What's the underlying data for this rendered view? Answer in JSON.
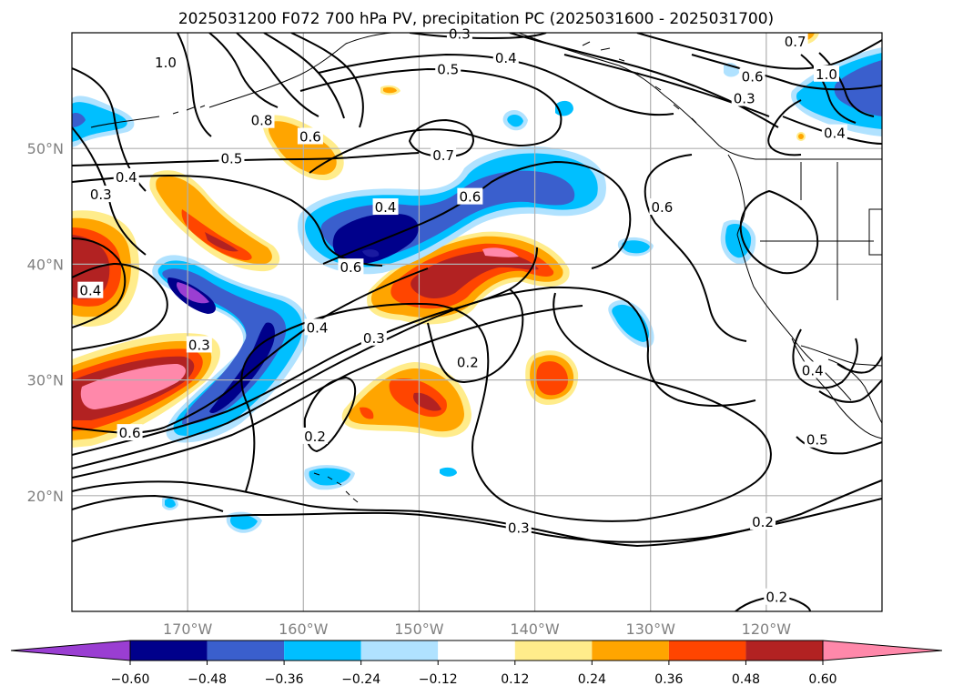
{
  "title": "2025031200 F072 700 hPa PV, precipitation PC (2025031600 - 2025031700)",
  "map": {
    "lon_range": [
      180,
      110
    ],
    "lat_range": [
      10,
      60
    ],
    "lon_ticks": [
      {
        "lon": 170,
        "label": "170°W"
      },
      {
        "lon": 160,
        "label": "160°W"
      },
      {
        "lon": 150,
        "label": "150°W"
      },
      {
        "lon": 140,
        "label": "140°W"
      },
      {
        "lon": 130,
        "label": "130°W"
      },
      {
        "lon": 120,
        "label": "120°W"
      }
    ],
    "lat_ticks": [
      {
        "lat": 50,
        "label": "50°N"
      },
      {
        "lat": 40,
        "label": "40°N"
      },
      {
        "lat": 30,
        "label": "30°N"
      },
      {
        "lat": 20,
        "label": "20°N"
      }
    ],
    "grid": true,
    "contour_labels": [
      {
        "text": "0.3",
        "lon": 146.5,
        "lat": 59.9
      },
      {
        "text": "0.7",
        "lon": 117.5,
        "lat": 59.2
      },
      {
        "text": "1.0",
        "lon": 171.9,
        "lat": 57.4
      },
      {
        "text": "0.4",
        "lon": 142.5,
        "lat": 57.8
      },
      {
        "text": "0.5",
        "lon": 147.5,
        "lat": 56.8
      },
      {
        "text": "0.6",
        "lon": 121.2,
        "lat": 56.2
      },
      {
        "text": "1.0",
        "lon": 114.8,
        "lat": 56.4
      },
      {
        "text": "0.3",
        "lon": 121.9,
        "lat": 54.3
      },
      {
        "text": "0.8",
        "lon": 163.6,
        "lat": 52.4
      },
      {
        "text": "0.6",
        "lon": 159.4,
        "lat": 51.0
      },
      {
        "text": "0.4",
        "lon": 114.1,
        "lat": 51.3
      },
      {
        "text": "0.7",
        "lon": 147.9,
        "lat": 49.4
      },
      {
        "text": "0.5",
        "lon": 166.2,
        "lat": 49.1
      },
      {
        "text": "0.4",
        "lon": 175.3,
        "lat": 47.5
      },
      {
        "text": "0.6",
        "lon": 145.6,
        "lat": 45.8
      },
      {
        "text": "0.3",
        "lon": 177.5,
        "lat": 46.0
      },
      {
        "text": "0.4",
        "lon": 152.9,
        "lat": 44.9
      },
      {
        "text": "0.6",
        "lon": 129.0,
        "lat": 44.9
      },
      {
        "text": "0.6",
        "lon": 155.9,
        "lat": 39.7
      },
      {
        "text": "0.4",
        "lon": 178.4,
        "lat": 37.7
      },
      {
        "text": "0.4",
        "lon": 158.8,
        "lat": 34.5
      },
      {
        "text": "0.3",
        "lon": 169.0,
        "lat": 33.0
      },
      {
        "text": "0.3",
        "lon": 153.9,
        "lat": 33.6
      },
      {
        "text": "0.2",
        "lon": 145.8,
        "lat": 31.5
      },
      {
        "text": "0.4",
        "lon": 116.0,
        "lat": 30.8
      },
      {
        "text": "0.6",
        "lon": 175.0,
        "lat": 25.4
      },
      {
        "text": "0.2",
        "lon": 159.0,
        "lat": 25.1
      },
      {
        "text": "0.5",
        "lon": 115.6,
        "lat": 24.8
      },
      {
        "text": "0.3",
        "lon": 141.4,
        "lat": 17.2
      },
      {
        "text": "0.2",
        "lon": 120.3,
        "lat": 17.7
      },
      {
        "text": "0.2",
        "lon": 119.1,
        "lat": 11.2
      }
    ]
  },
  "colorbar": {
    "ticks": [
      "−0.60",
      "−0.48",
      "−0.36",
      "−0.24",
      "−0.12",
      "0.12",
      "0.24",
      "0.36",
      "0.48",
      "0.60"
    ],
    "levels": [
      -0.6,
      -0.48,
      -0.36,
      -0.24,
      -0.12,
      0.12,
      0.24,
      0.36,
      0.48,
      0.6
    ],
    "colors": [
      "#9a3ed2",
      "#00008b",
      "#3a5fcd",
      "#00bfff",
      "#b0e2ff",
      "#ffffff",
      "#ffec8b",
      "#ffa500",
      "#ff4500",
      "#b22222",
      "#ff88aa"
    ],
    "extend": "both"
  },
  "palette": {
    "purple": "#9a3ed2",
    "navy": "#00008b",
    "royalblue": "#3a5fcd",
    "skyblue": "#00bfff",
    "paleblue": "#b0e2ff",
    "paleyellow": "#ffec8b",
    "orange": "#ffa500",
    "redorange": "#ff4500",
    "firebrick": "#b22222",
    "pink": "#ff88aa"
  }
}
